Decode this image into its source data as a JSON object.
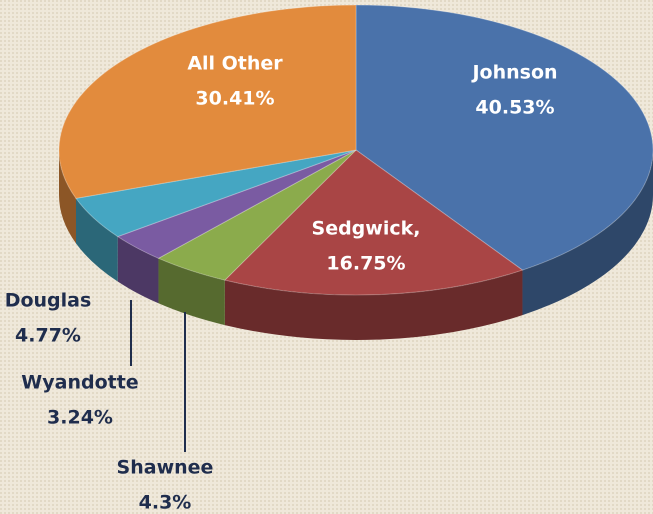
{
  "chart_data": {
    "type": "pie",
    "categories": [
      "Johnson",
      "Sedgwick,",
      "Shawnee",
      "Wyandotte",
      "Douglas",
      "All Other"
    ],
    "values": [
      40.53,
      16.75,
      4.3,
      3.24,
      4.77,
      30.41
    ],
    "value_labels": [
      "40.53%",
      "16.75%",
      "4.3%",
      "3.24%",
      "4.77%",
      "30.41%"
    ],
    "colors": [
      "#4a72aa",
      "#a94545",
      "#8bab4c",
      "#7a5ba2",
      "#45a6c2",
      "#e28b3d"
    ]
  }
}
